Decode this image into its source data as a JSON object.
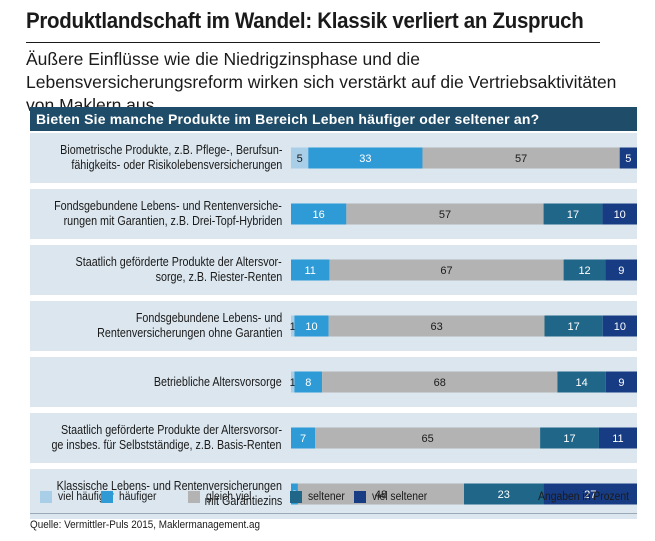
{
  "title": "Produktlandschaft im Wandel: Klassik verliert an Zuspruch",
  "subtitle": "Äußere Einflüsse wie die Niedrigzinsphase und die Lebensversicherungsreform wirken sich verstärkt auf die Vertriebsaktivitäten von Maklern aus.",
  "source": "Quelle: Vermittler-Puls 2015, Maklermanagement.ag",
  "chart_data": {
    "type": "bar",
    "orientation": "horizontal",
    "stacked": true,
    "title": "Bieten Sie manche Produkte im Bereich Leben häufiger oder seltener an?",
    "unit_note": "Angaben in Prozent",
    "legend_position": "bottom",
    "categories": [
      [
        "Biometrische Produkte, z.B. Pflege-, Berufsun-",
        "fähigkeits- oder Risikolebensversicherungen"
      ],
      [
        "Fondsgebundene Lebens- und Rentenversiche-",
        "rungen mit Garantien, z.B. Drei-Topf-Hybriden"
      ],
      [
        "Staatlich geförderte Produkte der Altersvor-",
        "sorge, z.B. Riester-Renten"
      ],
      [
        "Fondsgebundene Lebens- und",
        "Rentenversicherungen ohne Garantien"
      ],
      [
        "Betriebliche Altersvorsorge"
      ],
      [
        "Staatlich geförderte Produkte der Altersvorsor-",
        "ge insbes. für Selbstständige, z.B. Basis-Renten"
      ],
      [
        "Klassische Lebens- und Rentenversicherungen",
        "mit Garantiezins"
      ]
    ],
    "series": [
      {
        "name": "viel häufiger",
        "color": "#a9cfe8",
        "values": [
          5,
          0,
          0,
          1,
          1,
          0,
          0
        ]
      },
      {
        "name": "häufiger",
        "color": "#2e9ad6",
        "values": [
          33,
          16,
          11,
          10,
          8,
          7,
          2
        ]
      },
      {
        "name": "gleich viel",
        "color": "#b3b3b3",
        "values": [
          57,
          57,
          67,
          63,
          68,
          65,
          48
        ]
      },
      {
        "name": "seltener",
        "color": "#1f6688",
        "values": [
          0,
          17,
          12,
          17,
          14,
          17,
          23
        ]
      },
      {
        "name": "viel seltener",
        "color": "#183c84",
        "values": [
          5,
          10,
          9,
          10,
          9,
          11,
          27
        ]
      }
    ]
  }
}
